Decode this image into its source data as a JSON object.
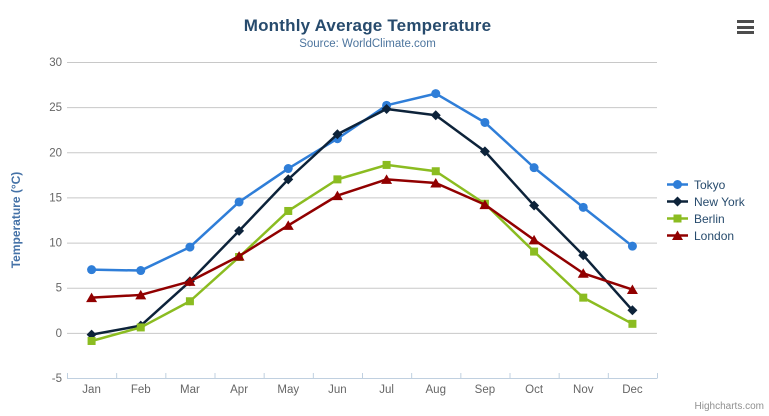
{
  "header": {
    "title": "Monthly Average Temperature",
    "subtitle": "Source: WorldClimate.com"
  },
  "icons": {
    "context_menu": "hamburger-icon"
  },
  "credits": {
    "label": "Highcharts.com"
  },
  "colors": {
    "title": "#274b6d",
    "subtitle": "#4d759e",
    "axis_title": "#4572a7",
    "tick_label": "#666666",
    "gridline": "#c8c8c8",
    "axis_line": "#c0d0e0",
    "legend_text": "#274b6d",
    "credits": "#909090"
  },
  "chart_data": {
    "type": "line",
    "title": "Monthly Average Temperature",
    "subtitle": "Source: WorldClimate.com",
    "xlabel": "",
    "ylabel": "Temperature (°C)",
    "categories": [
      "Jan",
      "Feb",
      "Mar",
      "Apr",
      "May",
      "Jun",
      "Jul",
      "Aug",
      "Sep",
      "Oct",
      "Nov",
      "Dec"
    ],
    "ylim": [
      -5,
      30
    ],
    "ytick_step": 5,
    "grid": true,
    "legend_position": "right",
    "series": [
      {
        "name": "Tokyo",
        "color": "#2f7ed8",
        "marker": "circle",
        "values": [
          7.0,
          6.9,
          9.5,
          14.5,
          18.2,
          21.5,
          25.2,
          26.5,
          23.3,
          18.3,
          13.9,
          9.6
        ]
      },
      {
        "name": "New York",
        "color": "#0d233a",
        "marker": "diamond",
        "values": [
          -0.2,
          0.8,
          5.7,
          11.3,
          17.0,
          22.0,
          24.8,
          24.1,
          20.1,
          14.1,
          8.6,
          2.5
        ]
      },
      {
        "name": "Berlin",
        "color": "#8bbc21",
        "marker": "square",
        "values": [
          -0.9,
          0.6,
          3.5,
          8.4,
          13.5,
          17.0,
          18.6,
          17.9,
          14.3,
          9.0,
          3.9,
          1.0
        ]
      },
      {
        "name": "London",
        "color": "#910000",
        "marker": "triangle",
        "values": [
          3.9,
          4.2,
          5.7,
          8.5,
          11.9,
          15.2,
          17.0,
          16.6,
          14.2,
          10.3,
          6.6,
          4.8
        ]
      }
    ]
  }
}
